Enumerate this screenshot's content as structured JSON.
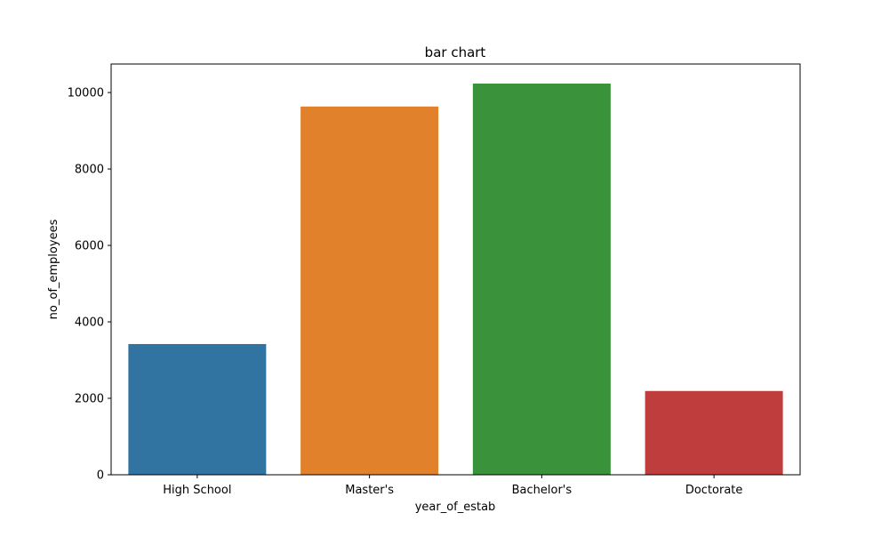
{
  "chart_data": {
    "type": "bar",
    "title": "bar chart",
    "xlabel": "year_of_estab",
    "ylabel": "no_of_employees",
    "categories": [
      "High School",
      "Master's",
      "Bachelor's",
      "Doctorate"
    ],
    "values": [
      3420,
      9634,
      10234,
      2192
    ],
    "colors": [
      "#3274a1",
      "#e1812c",
      "#3a923a",
      "#c03d3e"
    ],
    "ylim": [
      0,
      10746
    ],
    "yticks": [
      0,
      2000,
      4000,
      6000,
      8000,
      10000
    ],
    "grid": false,
    "legend": "none"
  }
}
